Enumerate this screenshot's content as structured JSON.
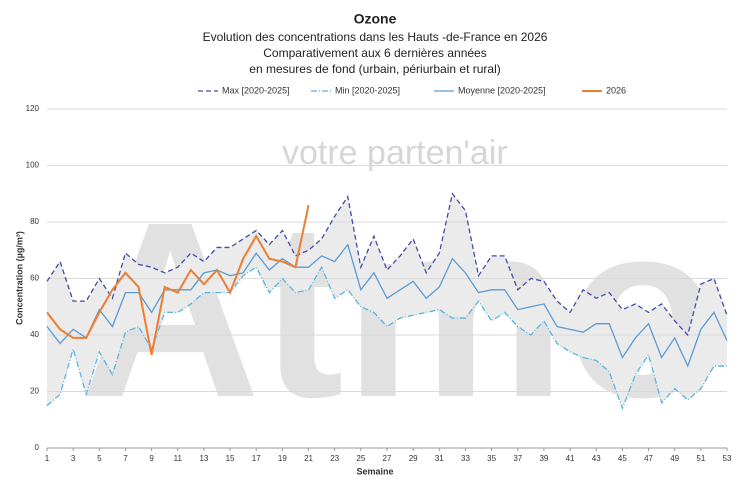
{
  "chart_data": {
    "type": "line",
    "title": "Ozone",
    "subtitle": [
      "Evolution des concentrations dans les Hauts -de-France en 2026",
      "Comparativement aux 6 dernières années",
      "en mesures de fond (urbain, périurbain et rural)"
    ],
    "watermark": [
      "Atmo",
      "votre parten'air"
    ],
    "x_label": "Semaine",
    "y_label": "Concentration (µg/m³)",
    "x": [
      1,
      2,
      3,
      4,
      5,
      6,
      7,
      8,
      9,
      10,
      11,
      12,
      13,
      14,
      15,
      16,
      17,
      18,
      19,
      20,
      21,
      22,
      23,
      24,
      25,
      26,
      27,
      28,
      29,
      30,
      31,
      32,
      33,
      34,
      35,
      36,
      37,
      38,
      39,
      40,
      41,
      42,
      43,
      44,
      45,
      46,
      47,
      48,
      49,
      50,
      51,
      52,
      53
    ],
    "xlim": [
      1,
      53
    ],
    "xticks": [
      1,
      3,
      5,
      7,
      9,
      11,
      13,
      15,
      17,
      19,
      21,
      23,
      25,
      27,
      29,
      31,
      33,
      35,
      37,
      39,
      41,
      43,
      45,
      47,
      49,
      51,
      53
    ],
    "ylim": [
      0,
      120
    ],
    "yticks": [
      0,
      20,
      40,
      60,
      80,
      100,
      120
    ],
    "grid": true,
    "legend": "top",
    "series": [
      {
        "name": "Max [2020-2025]",
        "color": "#3f4fa8",
        "dash": "5,3",
        "values": [
          59,
          66,
          52,
          52,
          60,
          53,
          69,
          65,
          64,
          62,
          64,
          69,
          66,
          71,
          71,
          74,
          77,
          72,
          77,
          68,
          70,
          74,
          82,
          89,
          64,
          75,
          63,
          68,
          74,
          62,
          69,
          90,
          84,
          61,
          68,
          68,
          56,
          60,
          59,
          52,
          48,
          56,
          53,
          55,
          49,
          51,
          48,
          51,
          45,
          40,
          58,
          60,
          47
        ]
      },
      {
        "name": "Min [2020-2025]",
        "color": "#5ab4e0",
        "dash": "6,2,1,2",
        "values": [
          15,
          19,
          35,
          19,
          34,
          26,
          41,
          43,
          35,
          48,
          48,
          51,
          55,
          55,
          55,
          61,
          64,
          55,
          60,
          55,
          56,
          64,
          53,
          56,
          50,
          48,
          43,
          46,
          47,
          48,
          49,
          46,
          46,
          52,
          45,
          48,
          43,
          40,
          45,
          37,
          34,
          32,
          31,
          27,
          14,
          26,
          33,
          16,
          21,
          17,
          21,
          29,
          29
        ]
      },
      {
        "name": "Moyenne [2020-2025]",
        "color": "#5b9bd5",
        "values": [
          43,
          37,
          42,
          39,
          49,
          43,
          55,
          55,
          48,
          56,
          56,
          56,
          62,
          63,
          61,
          62,
          69,
          63,
          67,
          64,
          64,
          68,
          66,
          72,
          56,
          62,
          53,
          56,
          59,
          53,
          57,
          67,
          62,
          55,
          56,
          56,
          49,
          50,
          51,
          43,
          42,
          41,
          44,
          44,
          32,
          39,
          44,
          32,
          39,
          29,
          42,
          48,
          38
        ]
      },
      {
        "name": "2026",
        "color": "#ed7d31",
        "width": 2,
        "values": [
          48,
          42,
          39,
          39,
          48,
          56,
          62,
          57,
          33,
          57,
          55,
          63,
          58,
          63,
          55,
          67,
          75,
          67,
          66,
          64,
          86,
          null,
          null,
          null,
          null,
          null,
          null,
          null,
          null,
          null,
          null,
          null,
          null,
          null,
          null,
          null,
          null,
          null,
          null,
          null,
          null,
          null,
          null,
          null,
          null,
          null,
          null,
          null,
          null,
          null,
          null,
          null,
          null
        ]
      }
    ],
    "band_color": "#ebebeb"
  }
}
